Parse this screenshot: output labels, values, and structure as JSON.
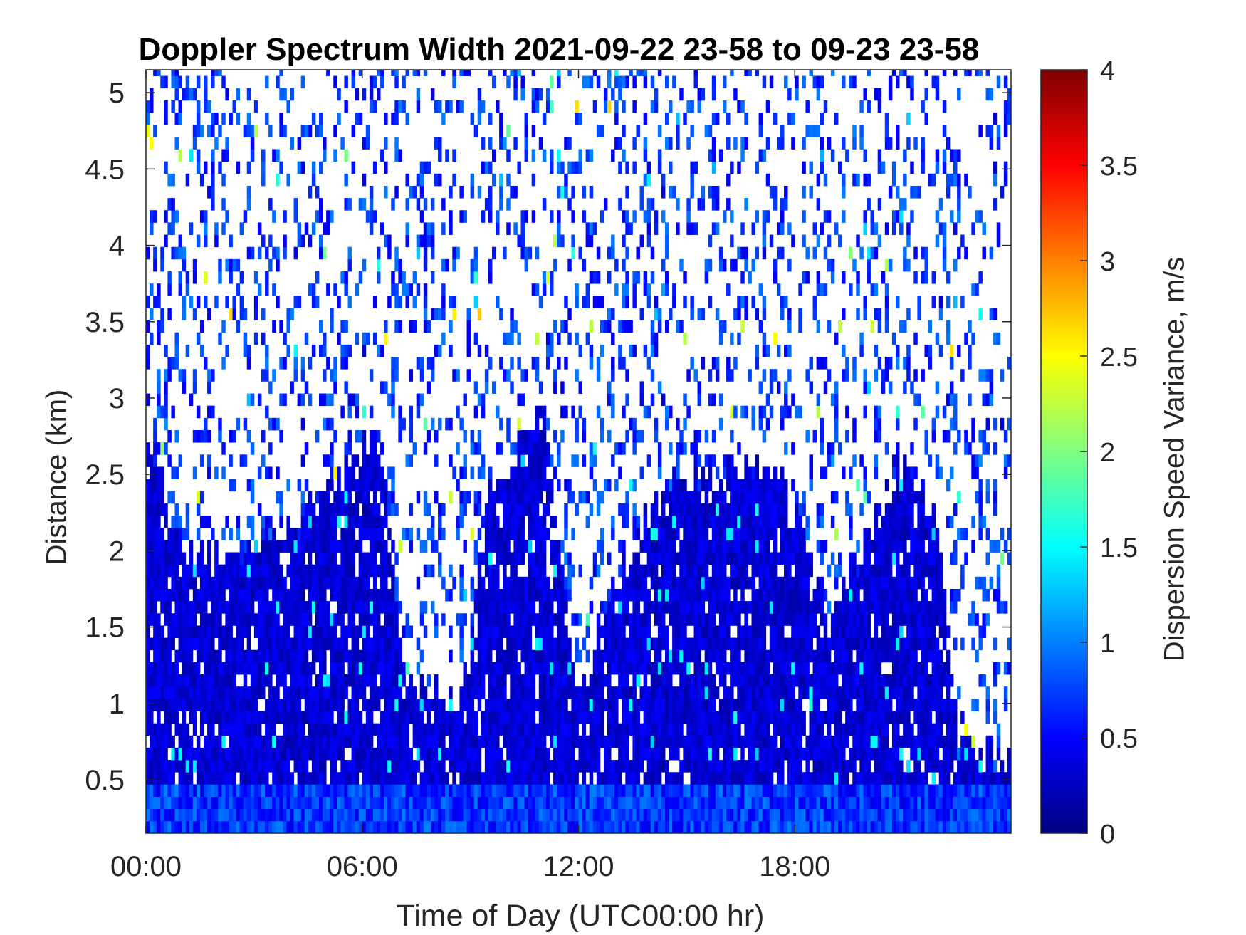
{
  "chart_data": {
    "type": "heatmap",
    "title": "Doppler Spectrum Width 2021-09-22 23-58 to 09-23 23-58",
    "xlabel": "Time of Day (UTC00:00 hr)",
    "ylabel": "Distance (km)",
    "colorbar_label": "Dispersion Speed Variance, m/s",
    "colormap": "jet",
    "xlim": [
      0,
      24
    ],
    "ylim": [
      0.15,
      5.15
    ],
    "clim": [
      0,
      4
    ],
    "x_ticks": [
      0,
      6,
      12,
      18
    ],
    "x_tick_labels": [
      "00:00",
      "06:00",
      "12:00",
      "18:00"
    ],
    "y_ticks": [
      0.5,
      1,
      1.5,
      2,
      2.5,
      3,
      3.5,
      4,
      4.5,
      5
    ],
    "y_tick_labels": [
      "0.5",
      "1",
      "1.5",
      "2",
      "2.5",
      "3",
      "3.5",
      "4",
      "4.5",
      "5"
    ],
    "colorbar_ticks": [
      0,
      0.5,
      1,
      1.5,
      2,
      2.5,
      3,
      3.5,
      4
    ],
    "colorbar_tick_labels": [
      "0",
      "0.5",
      "1",
      "1.5",
      "2",
      "2.5",
      "3",
      "3.5",
      "4"
    ],
    "dense_layer_top_km": [
      {
        "time": 0,
        "top_km": 2.8
      },
      {
        "time": 1,
        "top_km": 1.95
      },
      {
        "time": 2.5,
        "top_km": 1.95
      },
      {
        "time": 4.5,
        "top_km": 2.2
      },
      {
        "time": 6.5,
        "top_km": 2.75
      },
      {
        "time": 7.2,
        "top_km": 1.1
      },
      {
        "time": 8.8,
        "top_km": 1.0
      },
      {
        "time": 9.5,
        "top_km": 2.3
      },
      {
        "time": 11,
        "top_km": 2.9
      },
      {
        "time": 12,
        "top_km": 1.0
      },
      {
        "time": 14,
        "top_km": 2.3
      },
      {
        "time": 16,
        "top_km": 2.5
      },
      {
        "time": 17.5,
        "top_km": 2.5
      },
      {
        "time": 19,
        "top_km": 1.5
      },
      {
        "time": 21,
        "top_km": 2.6
      },
      {
        "time": 22,
        "top_km": 2.1
      },
      {
        "time": 22.5,
        "top_km": 0.7
      },
      {
        "time": 24,
        "top_km": 0.6
      }
    ],
    "typical_values_m_s": {
      "boundary_layer": 0.3,
      "near_surface": 0.7,
      "upper_noise": 0.4
    }
  }
}
